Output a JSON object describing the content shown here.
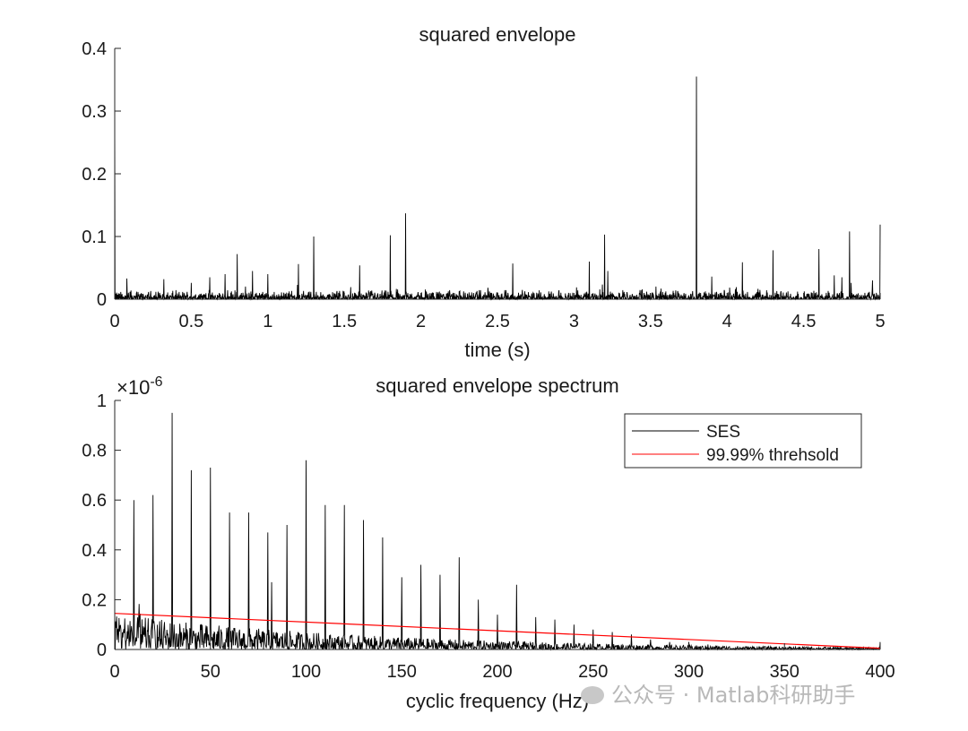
{
  "chart_data": [
    {
      "type": "line",
      "title": "squared envelope",
      "xlabel": "time (s)",
      "ylabel": "",
      "xlim": [
        0,
        5
      ],
      "ylim": [
        0,
        0.4
      ],
      "xticks": [
        0,
        0.5,
        1,
        1.5,
        2,
        2.5,
        3,
        3.5,
        4,
        4.5,
        5
      ],
      "xtick_labels": [
        "0",
        "0.5",
        "1",
        "1.5",
        "2",
        "2.5",
        "3",
        "3.5",
        "4",
        "4.5",
        "5"
      ],
      "yticks": [
        0,
        0.1,
        0.2,
        0.3,
        0.4
      ],
      "ytick_labels": [
        "0",
        "0.1",
        "0.2",
        "0.3",
        "0.4"
      ],
      "series": [
        {
          "name": "squared envelope",
          "color": "#000000",
          "noise_floor": 0.008,
          "peaks": [
            [
              0.0,
              0.3
            ],
            [
              0.08,
              0.033
            ],
            [
              0.32,
              0.032
            ],
            [
              0.5,
              0.026
            ],
            [
              0.62,
              0.035
            ],
            [
              0.72,
              0.04
            ],
            [
              0.8,
              0.072
            ],
            [
              0.9,
              0.045
            ],
            [
              1.0,
              0.04
            ],
            [
              1.2,
              0.056
            ],
            [
              1.3,
              0.1
            ],
            [
              1.6,
              0.054
            ],
            [
              1.8,
              0.102
            ],
            [
              1.9,
              0.137
            ],
            [
              2.6,
              0.057
            ],
            [
              3.1,
              0.06
            ],
            [
              3.2,
              0.103
            ],
            [
              3.22,
              0.045
            ],
            [
              3.8,
              0.355
            ],
            [
              3.9,
              0.036
            ],
            [
              4.1,
              0.059
            ],
            [
              4.3,
              0.078
            ],
            [
              4.6,
              0.08
            ],
            [
              4.7,
              0.038
            ],
            [
              4.75,
              0.035
            ],
            [
              4.8,
              0.108
            ],
            [
              4.95,
              0.03
            ],
            [
              5.0,
              0.119
            ]
          ]
        }
      ]
    },
    {
      "type": "line",
      "title": "squared envelope spectrum",
      "xlabel": "cyclic frequency (Hz)",
      "ylabel": "",
      "y_exponent_label": "×10",
      "y_exponent": "-6",
      "xlim": [
        0,
        400
      ],
      "ylim": [
        0,
        1
      ],
      "xticks": [
        0,
        50,
        100,
        150,
        200,
        250,
        300,
        350,
        400
      ],
      "xtick_labels": [
        "0",
        "50",
        "100",
        "150",
        "200",
        "250",
        "300",
        "350",
        "400"
      ],
      "yticks": [
        0,
        0.2,
        0.4,
        0.6,
        0.8,
        1
      ],
      "ytick_labels": [
        "0",
        "0.2",
        "0.4",
        "0.6",
        "0.8",
        "1"
      ],
      "series": [
        {
          "name": "SES",
          "color": "#000000",
          "peaks": [
            [
              10,
              0.6
            ],
            [
              20,
              0.62
            ],
            [
              30,
              0.95
            ],
            [
              40,
              0.72
            ],
            [
              50,
              0.73
            ],
            [
              60,
              0.55
            ],
            [
              70,
              0.55
            ],
            [
              80,
              0.47
            ],
            [
              82,
              0.27
            ],
            [
              90,
              0.5
            ],
            [
              100,
              0.76
            ],
            [
              110,
              0.58
            ],
            [
              120,
              0.58
            ],
            [
              130,
              0.52
            ],
            [
              140,
              0.45
            ],
            [
              150,
              0.29
            ],
            [
              160,
              0.34
            ],
            [
              170,
              0.3
            ],
            [
              180,
              0.37
            ],
            [
              190,
              0.2
            ],
            [
              200,
              0.14
            ],
            [
              210,
              0.26
            ],
            [
              220,
              0.13
            ],
            [
              230,
              0.12
            ],
            [
              240,
              0.1
            ],
            [
              250,
              0.08
            ],
            [
              260,
              0.07
            ],
            [
              270,
              0.06
            ],
            [
              280,
              0.04
            ],
            [
              290,
              0.03
            ],
            [
              300,
              0.03
            ],
            [
              310,
              0.02
            ],
            [
              400,
              0.03
            ]
          ]
        },
        {
          "name": "99.99% threhsold",
          "color": "#ff0000",
          "x": [
            0,
            400
          ],
          "y": [
            0.145,
            0.005
          ]
        }
      ],
      "legend": {
        "position": "top-right",
        "entries": [
          "SES",
          "99.99% threhsold"
        ]
      }
    }
  ],
  "watermark": {
    "text": "公众号 · Matlab科研助手"
  }
}
